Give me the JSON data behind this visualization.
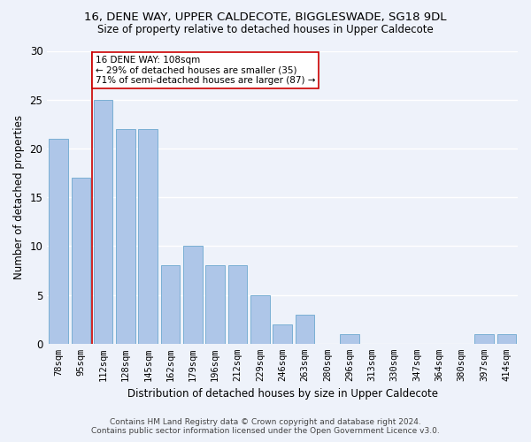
{
  "title_line1": "16, DENE WAY, UPPER CALDECOTE, BIGGLESWADE, SG18 9DL",
  "title_line2": "Size of property relative to detached houses in Upper Caldecote",
  "xlabel": "Distribution of detached houses by size in Upper Caldecote",
  "ylabel": "Number of detached properties",
  "categories": [
    "78sqm",
    "95sqm",
    "112sqm",
    "128sqm",
    "145sqm",
    "162sqm",
    "179sqm",
    "196sqm",
    "212sqm",
    "229sqm",
    "246sqm",
    "263sqm",
    "280sqm",
    "296sqm",
    "313sqm",
    "330sqm",
    "347sqm",
    "364sqm",
    "380sqm",
    "397sqm",
    "414sqm"
  ],
  "values": [
    21,
    17,
    25,
    22,
    22,
    8,
    10,
    8,
    8,
    5,
    2,
    3,
    0,
    1,
    0,
    0,
    0,
    0,
    0,
    1,
    1
  ],
  "bar_color": "#aec6e8",
  "bar_edge_color": "#7aafd4",
  "vline_x_index": 1.5,
  "vline_color": "#cc0000",
  "annotation_text": "16 DENE WAY: 108sqm\n← 29% of detached houses are smaller (35)\n71% of semi-detached houses are larger (87) →",
  "annotation_box_facecolor": "#ffffff",
  "annotation_box_edgecolor": "#cc0000",
  "ylim": [
    0,
    30
  ],
  "yticks": [
    0,
    5,
    10,
    15,
    20,
    25,
    30
  ],
  "footer_line1": "Contains HM Land Registry data © Crown copyright and database right 2024.",
  "footer_line2": "Contains public sector information licensed under the Open Government Licence v3.0.",
  "bg_color": "#eef2fa",
  "grid_color": "#ffffff",
  "title1_fontsize": 9.5,
  "title2_fontsize": 8.5,
  "ylabel_fontsize": 8.5,
  "xlabel_fontsize": 8.5,
  "tick_fontsize": 7.5,
  "annotation_fontsize": 7.5,
  "footer_fontsize": 6.5
}
